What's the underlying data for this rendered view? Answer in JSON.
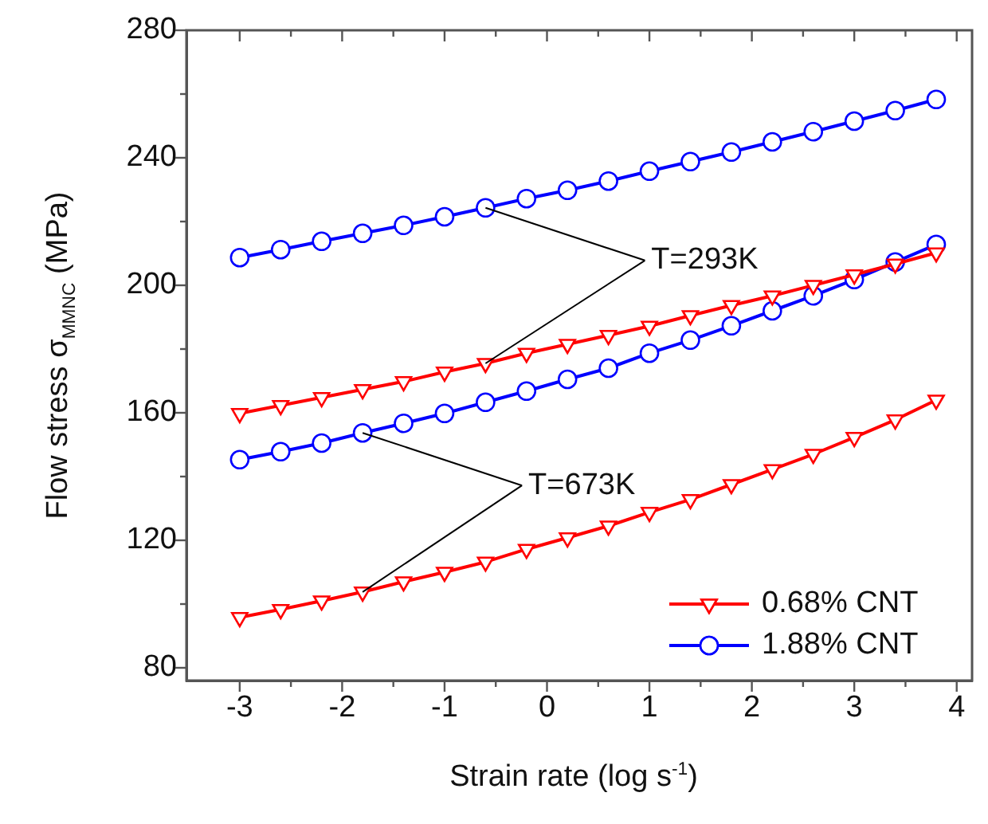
{
  "chart_data": {
    "type": "line",
    "xlabel": "Strain rate  (log s$^{-1}$)",
    "ylabel": "Flow stress  σ$_{MMNC}$ (MPa)",
    "x": [
      -3,
      -2.6,
      -2.2,
      -1.8,
      -1.4,
      -1,
      -0.6,
      -0.2,
      0.2,
      0.6,
      1,
      1.4,
      1.8,
      2.2,
      2.6,
      3,
      3.4,
      3.8
    ],
    "series": [
      {
        "name": "0.68% CNT",
        "color": "#ff0000",
        "marker": "triangle",
        "values": [
          159.8,
          162.3,
          164.8,
          167.3,
          169.8,
          172.8,
          175.5,
          178.7,
          181.5,
          184.3,
          187.2,
          190.5,
          193.7,
          196.7,
          200,
          203.3,
          206.7,
          210.2
        ]
      },
      {
        "name": "1.88% CNT",
        "color": "#0000ff",
        "marker": "circle",
        "values": [
          208.7,
          211.2,
          213.8,
          216.3,
          218.8,
          221.5,
          224.3,
          227.2,
          229.8,
          232.7,
          235.8,
          238.8,
          241.8,
          245,
          248.2,
          251.5,
          254.8,
          258.3
        ]
      },
      {
        "color": "#ff0000",
        "marker": "triangle",
        "values": [
          95.8,
          98.3,
          101,
          103.8,
          107,
          110,
          113.2,
          117.2,
          120.8,
          124.5,
          128.8,
          132.8,
          137.5,
          142.2,
          147,
          152.3,
          157.8,
          164
        ]
      },
      {
        "color": "#0000ff",
        "marker": "circle",
        "values": [
          145.3,
          147.8,
          150.5,
          153.7,
          156.7,
          159.8,
          163.3,
          166.8,
          170.5,
          174,
          178.7,
          182.8,
          187.3,
          192,
          196.7,
          201.8,
          207.3,
          212.8
        ]
      }
    ],
    "xlim": [
      -3.52,
      4.15
    ],
    "xticks": [
      -3,
      {
        "value": -2.5,
        "label": null
      },
      -2,
      {
        "value": -1.5,
        "label": null
      },
      -1,
      {
        "value": -0.5,
        "label": null
      },
      0,
      {
        "value": 0.5,
        "label": null
      },
      1,
      {
        "value": 1.5,
        "label": null
      },
      2,
      {
        "value": 2.5,
        "label": null
      },
      3,
      {
        "value": 3.5,
        "label": null
      },
      4
    ],
    "ylim": [
      76,
      280
    ],
    "yticks": [
      80,
      {
        "value": 100,
        "label": null
      },
      120,
      {
        "value": 140,
        "label": null
      },
      160,
      {
        "value": 180,
        "label": null
      },
      200,
      {
        "value": 220,
        "label": null
      },
      240,
      {
        "value": 260,
        "label": null
      },
      280
    ],
    "annotations": [
      {
        "text": "T=293K",
        "x": -0.6,
        "y": 224.3
      },
      {
        "text": "T=673K",
        "x": -1.8,
        "y": 153.7
      }
    ],
    "legend": "bottom right",
    "grid": false
  }
}
